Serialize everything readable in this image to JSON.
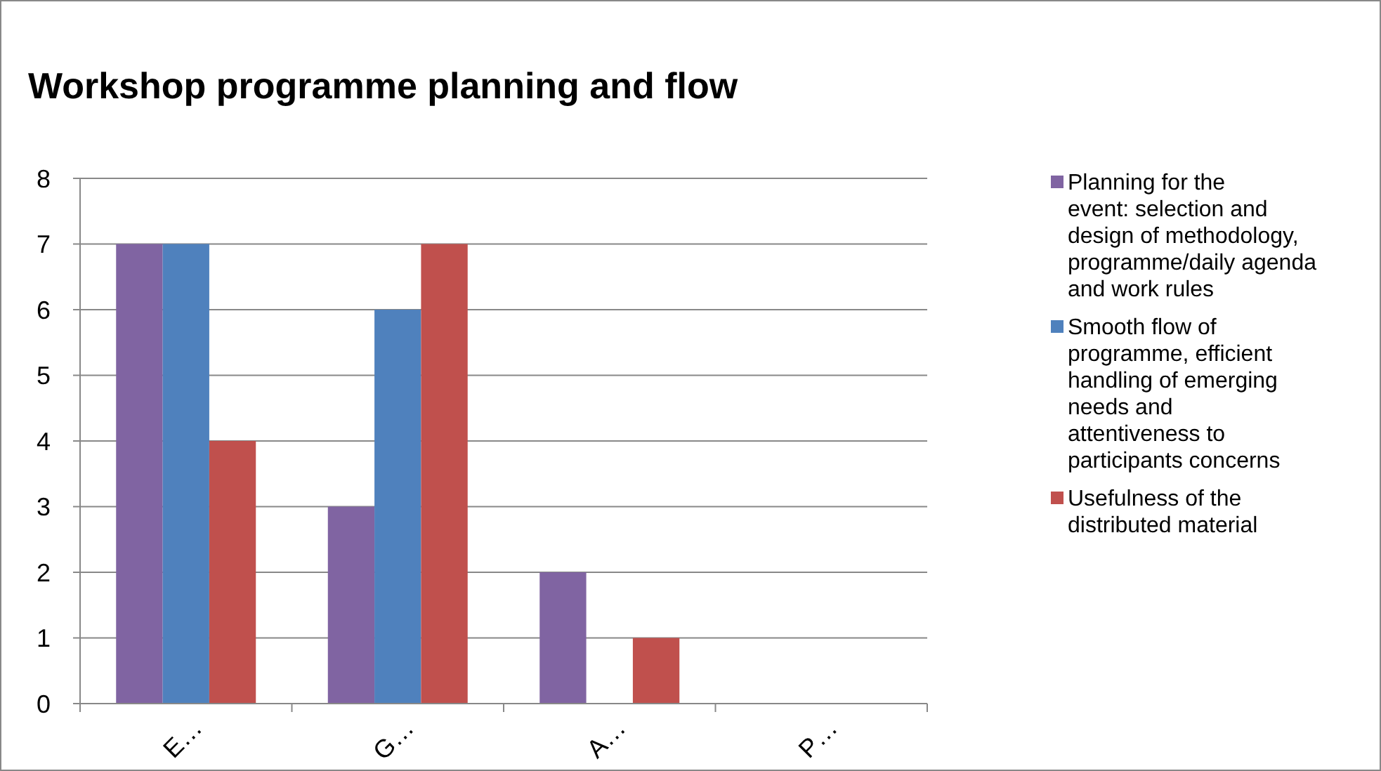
{
  "chart_data": {
    "type": "bar",
    "title": "Workshop programme planning and flow",
    "categories": [
      "E…",
      "G…",
      "A…",
      "P…"
    ],
    "series": [
      {
        "name": "Planning for the event: selection and design of methodology, programme/daily agenda and work rules",
        "color": "#8064a2",
        "values": [
          7,
          3,
          2,
          0
        ]
      },
      {
        "name": "Smooth flow of programme, efficient handling of emerging needs and attentiveness to participants concerns",
        "color": "#4f81bd",
        "values": [
          7,
          6,
          0,
          0
        ]
      },
      {
        "name": "Usefulness of the distributed material",
        "color": "#c0504d",
        "values": [
          4,
          7,
          1,
          0
        ]
      }
    ],
    "ylim": [
      0,
      8
    ],
    "yticks": [
      0,
      1,
      2,
      3,
      4,
      5,
      6,
      7,
      8
    ],
    "grid": "y",
    "legend": "right"
  }
}
